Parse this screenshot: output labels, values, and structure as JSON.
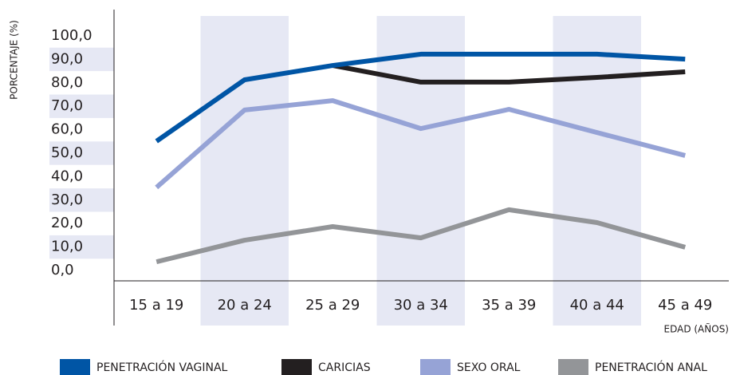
{
  "chart_data": {
    "type": "line",
    "y_label": "PORCENTAJE (%)",
    "x_label": "EDAD (AÑOS)",
    "categories": [
      "15 a 19",
      "20 a 24",
      "25 a 29",
      "30 a 34",
      "35 a 39",
      "40 a 44",
      "45 a 49"
    ],
    "series": [
      {
        "name": "PENETRACIÓN VAGINAL",
        "color": "#0055a5",
        "values": [
          55.1,
          81.3,
          87.4,
          92.2,
          92.2,
          92.2,
          90.1
        ]
      },
      {
        "name": "CARICIAS",
        "color": "#231f20",
        "values": [
          null,
          null,
          87.4,
          80.3,
          80.3,
          82.3,
          84.7
        ]
      },
      {
        "name": "SEXO ORAL",
        "color": "#96a3d6",
        "values": [
          35.4,
          68.4,
          72.4,
          60.5,
          68.7,
          58.8,
          49.0
        ]
      },
      {
        "name": "PENETRACIÓN ANAL",
        "color": "#939598",
        "values": [
          3.7,
          12.9,
          18.7,
          13.9,
          25.9,
          20.4,
          9.9
        ]
      }
    ],
    "ylim": [
      0,
      100
    ],
    "yticks": [
      {
        "value": 0,
        "label": "0,0"
      },
      {
        "value": 10,
        "label": "10,0"
      },
      {
        "value": 20,
        "label": "20,0"
      },
      {
        "value": 30,
        "label": "30,0"
      },
      {
        "value": 40,
        "label": "40,0"
      },
      {
        "value": 50,
        "label": "50,0"
      },
      {
        "value": 60,
        "label": "60,0"
      },
      {
        "value": 70,
        "label": "70,0"
      },
      {
        "value": 80,
        "label": "80,0"
      },
      {
        "value": 90,
        "label": "90,0"
      },
      {
        "value": 100,
        "label": "100,0"
      }
    ],
    "legend": "bottom"
  }
}
